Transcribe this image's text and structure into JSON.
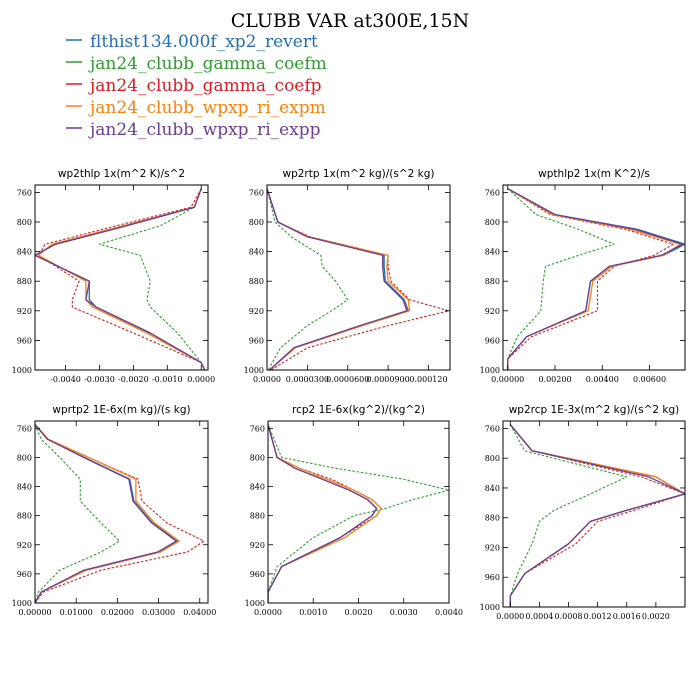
{
  "figure": {
    "title": "CLUBB VAR at300E,15N"
  },
  "colors": {
    "blue": "#1f6fb4",
    "green": "#2ca02c",
    "red": "#e31a1c",
    "orange": "#ff7f0e",
    "purple": "#6a3d9a"
  },
  "legend": [
    {
      "label": "flthist134.000f_xp2_revert",
      "color": "#1f6fb4"
    },
    {
      "label": "jan24_clubb_gamma_coefm",
      "color": "#2ca02c"
    },
    {
      "label": "jan24_clubb_gamma_coefp",
      "color": "#e31a1c"
    },
    {
      "label": "jan24_clubb_wpxp_ri_expm",
      "color": "#ff7f0e"
    },
    {
      "label": "jan24_clubb_wpxp_ri_expp",
      "color": "#6a3d9a"
    }
  ],
  "chart_data": [
    {
      "type": "line",
      "title": "wp2thlp  1x(m^2 K)/s^2",
      "ylim": [
        1000,
        750
      ],
      "yticks": [
        760,
        800,
        840,
        880,
        920,
        960,
        1000
      ],
      "xlim": [
        -0.0049,
        0.0002
      ],
      "xticks": [
        -0.004,
        -0.003,
        -0.002,
        -0.001,
        0.0
      ],
      "xtick_labels": [
        "-0.0040",
        "-0.0030",
        "-0.0020",
        "-0.0010",
        "0.0000"
      ],
      "y": [
        755,
        780,
        805,
        830,
        845,
        880,
        905,
        915,
        950,
        990,
        1000
      ],
      "series": [
        {
          "name": "flthist134.000f_xp2_revert",
          "color": "#1f6fb4",
          "dashed": false,
          "x": [
            0.0,
            -0.0002,
            -0.0022,
            -0.0043,
            -0.0049,
            -0.0033,
            -0.0033,
            -0.0031,
            -0.0015,
            0.0,
            0.0001
          ]
        },
        {
          "name": "jan24_clubb_gamma_coefm",
          "color": "#2ca02c",
          "dashed": true,
          "x": [
            0.0,
            -0.0002,
            -0.0012,
            -0.003,
            -0.0018,
            -0.0015,
            -0.0016,
            -0.0015,
            -0.0007,
            0.0,
            0.0001
          ]
        },
        {
          "name": "jan24_clubb_gamma_coefp",
          "color": "#e31a1c",
          "dashed": true,
          "x": [
            0.0,
            -0.0003,
            -0.0025,
            -0.0046,
            -0.0048,
            -0.0036,
            -0.0038,
            -0.0038,
            -0.002,
            0.0,
            0.0001
          ]
        },
        {
          "name": "jan24_clubb_wpxp_ri_expm",
          "color": "#ff7f0e",
          "dashed": false,
          "x": [
            0.0,
            -0.0002,
            -0.0023,
            -0.0044,
            -0.0048,
            -0.0034,
            -0.0034,
            -0.0032,
            -0.0016,
            0.0,
            0.0001
          ]
        },
        {
          "name": "jan24_clubb_wpxp_ri_expp",
          "color": "#6a3d9a",
          "dashed": false,
          "x": [
            0.0,
            -0.0002,
            -0.0022,
            -0.0043,
            -0.0049,
            -0.0033,
            -0.0034,
            -0.0031,
            -0.0015,
            0.0,
            0.0001
          ]
        }
      ]
    },
    {
      "type": "line",
      "title": "wp2rtp  1x(m^2 kg)/(s^2 kg)",
      "ylim": [
        1000,
        750
      ],
      "yticks": [
        760,
        800,
        840,
        880,
        920,
        960,
        1000
      ],
      "xlim": [
        0.0,
        0.000136
      ],
      "xticks": [
        0.0,
        3e-05,
        6e-05,
        9e-05,
        0.00012
      ],
      "xtick_labels": [
        "0.0000",
        "0.0000300",
        "0.0000600",
        "0.0000900",
        "0.000120"
      ],
      "y": [
        755,
        800,
        820,
        845,
        860,
        880,
        905,
        920,
        940,
        970,
        1000
      ],
      "series": [
        {
          "name": "flthist134.000f_xp2_revert",
          "color": "#1f6fb4",
          "dashed": false,
          "x": [
            0.0,
            8e-06,
            3e-05,
            8.7e-05,
            8.7e-05,
            8.8e-05,
            0.000102,
            0.000105,
            7e-05,
            2e-05,
            2e-06
          ]
        },
        {
          "name": "jan24_clubb_gamma_coefm",
          "color": "#2ca02c",
          "dashed": true,
          "x": [
            0.0,
            6e-06,
            1.8e-05,
            4e-05,
            4.1e-05,
            5.1e-05,
            6e-05,
            4.8e-05,
            3e-05,
            1e-05,
            1e-06
          ]
        },
        {
          "name": "jan24_clubb_gamma_coefp",
          "color": "#e31a1c",
          "dashed": true,
          "x": [
            0.0,
            8e-06,
            3.2e-05,
            9e-05,
            9e-05,
            9.2e-05,
            0.000106,
            0.000135,
            9e-05,
            3e-05,
            3e-06
          ]
        },
        {
          "name": "jan24_clubb_wpxp_ri_expm",
          "color": "#ff7f0e",
          "dashed": false,
          "x": [
            0.0,
            8e-06,
            3.1e-05,
            9e-05,
            8.9e-05,
            9e-05,
            0.000105,
            0.000106,
            7.1e-05,
            2.1e-05,
            2e-06
          ]
        },
        {
          "name": "jan24_clubb_wpxp_ri_expp",
          "color": "#6a3d9a",
          "dashed": false,
          "x": [
            0.0,
            8e-06,
            3e-05,
            8.6e-05,
            8.6e-05,
            8.7e-05,
            0.000101,
            0.000104,
            6.9e-05,
            2e-05,
            2e-06
          ]
        }
      ]
    },
    {
      "type": "line",
      "title": "wpthlp2  1x(m K^2)/s",
      "ylim": [
        1000,
        750
      ],
      "yticks": [
        760,
        800,
        840,
        880,
        920,
        960,
        1000
      ],
      "xlim": [
        -0.0002,
        0.0075
      ],
      "xticks": [
        0.0,
        0.002,
        0.004,
        0.006
      ],
      "xtick_labels": [
        "0.00000",
        "0.00200",
        "0.00400",
        "0.00600"
      ],
      "y": [
        755,
        790,
        810,
        830,
        845,
        860,
        880,
        920,
        955,
        985,
        1000
      ],
      "series": [
        {
          "name": "flthist134.000f_xp2_revert",
          "color": "#1f6fb4",
          "dashed": false,
          "x": [
            0.0,
            0.002,
            0.0055,
            0.0075,
            0.0066,
            0.0043,
            0.0035,
            0.0033,
            0.0008,
            0.0,
            0.0
          ]
        },
        {
          "name": "jan24_clubb_gamma_coefm",
          "color": "#2ca02c",
          "dashed": true,
          "x": [
            0.0,
            0.0012,
            0.003,
            0.0045,
            0.003,
            0.0016,
            0.0015,
            0.0014,
            0.0004,
            0.0,
            0.0
          ]
        },
        {
          "name": "jan24_clubb_gamma_coefp",
          "color": "#e31a1c",
          "dashed": true,
          "x": [
            0.0,
            0.0018,
            0.005,
            0.007,
            0.0062,
            0.0045,
            0.0038,
            0.0038,
            0.001,
            0.0,
            0.0
          ]
        },
        {
          "name": "jan24_clubb_wpxp_ri_expm",
          "color": "#ff7f0e",
          "dashed": false,
          "x": [
            0.0,
            0.0019,
            0.0052,
            0.0073,
            0.0066,
            0.0044,
            0.0036,
            0.0034,
            0.0008,
            0.0,
            0.0
          ]
        },
        {
          "name": "jan24_clubb_wpxp_ri_expp",
          "color": "#6a3d9a",
          "dashed": false,
          "x": [
            0.0,
            0.002,
            0.0054,
            0.0074,
            0.0065,
            0.0043,
            0.0035,
            0.0033,
            0.0008,
            0.0,
            0.0
          ]
        }
      ]
    },
    {
      "type": "line",
      "title": "wprtp2  1E-6x(m kg)/(s kg)",
      "ylim": [
        1000,
        750
      ],
      "yticks": [
        760,
        800,
        840,
        880,
        920,
        960,
        1000
      ],
      "xlim": [
        0.0,
        0.042
      ],
      "xticks": [
        0.0,
        0.01,
        0.02,
        0.03,
        0.04
      ],
      "xtick_labels": [
        "0.00000",
        "0.01000",
        "0.02000",
        "0.03000",
        "0.04000"
      ],
      "y": [
        755,
        775,
        800,
        830,
        860,
        890,
        915,
        930,
        955,
        985,
        1000
      ],
      "series": [
        {
          "name": "flthist134.000f_xp2_revert",
          "color": "#1f6fb4",
          "dashed": false,
          "x": [
            0.0,
            0.003,
            0.012,
            0.023,
            0.024,
            0.0285,
            0.0345,
            0.03,
            0.012,
            0.0015,
            0.0
          ]
        },
        {
          "name": "jan24_clubb_gamma_coefm",
          "color": "#2ca02c",
          "dashed": true,
          "x": [
            0.0,
            0.0015,
            0.006,
            0.011,
            0.011,
            0.016,
            0.0205,
            0.016,
            0.006,
            0.0008,
            0.0
          ]
        },
        {
          "name": "jan24_clubb_gamma_coefp",
          "color": "#e31a1c",
          "dashed": true,
          "x": [
            0.0,
            0.003,
            0.013,
            0.025,
            0.026,
            0.032,
            0.041,
            0.037,
            0.016,
            0.002,
            0.0
          ]
        },
        {
          "name": "jan24_clubb_wpxp_ri_expm",
          "color": "#ff7f0e",
          "dashed": false,
          "x": [
            0.0,
            0.0032,
            0.013,
            0.0245,
            0.0245,
            0.029,
            0.035,
            0.0305,
            0.0125,
            0.0015,
            0.0
          ]
        },
        {
          "name": "jan24_clubb_wpxp_ri_expp",
          "color": "#6a3d9a",
          "dashed": false,
          "x": [
            0.0,
            0.003,
            0.0118,
            0.0228,
            0.0238,
            0.0283,
            0.0343,
            0.0298,
            0.0118,
            0.0015,
            0.0
          ]
        }
      ]
    },
    {
      "type": "line",
      "title": "rcp2  1E-6x(kg^2)/(kg^2)",
      "ylim": [
        1000,
        750
      ],
      "yticks": [
        760,
        800,
        840,
        880,
        920,
        960,
        1000
      ],
      "xlim": [
        0.0,
        0.004
      ],
      "xticks": [
        0.0,
        0.001,
        0.002,
        0.003,
        0.004
      ],
      "xtick_labels": [
        "0.0000",
        "0.0010",
        "0.0020",
        "0.0030",
        "0.0040"
      ],
      "y": [
        755,
        800,
        815,
        830,
        845,
        858,
        870,
        880,
        910,
        950,
        985,
        1000
      ],
      "series": [
        {
          "name": "flthist134.000f_xp2_revert",
          "color": "#1f6fb4",
          "dashed": false,
          "x": [
            0.0,
            0.0002,
            0.0006,
            0.0012,
            0.0018,
            0.0022,
            0.0024,
            0.0023,
            0.0016,
            0.0003,
            0.0,
            0.0
          ]
        },
        {
          "name": "jan24_clubb_gamma_coefm",
          "color": "#2ca02c",
          "dashed": true,
          "x": [
            0.0,
            0.0003,
            0.0015,
            0.003,
            0.004,
            0.0032,
            0.0026,
            0.0019,
            0.001,
            0.0002,
            0.0,
            0.0
          ]
        },
        {
          "name": "jan24_clubb_gamma_coefp",
          "color": "#e31a1c",
          "dashed": true,
          "x": [
            0.0,
            0.0002,
            0.0007,
            0.0014,
            0.0019,
            0.0023,
            0.0025,
            0.0024,
            0.0016,
            0.0003,
            0.0,
            0.0
          ]
        },
        {
          "name": "jan24_clubb_wpxp_ri_expm",
          "color": "#ff7f0e",
          "dashed": false,
          "x": [
            0.0,
            0.0002,
            0.0007,
            0.0013,
            0.0019,
            0.0023,
            0.0025,
            0.0024,
            0.0017,
            0.0003,
            0.0,
            0.0
          ]
        },
        {
          "name": "jan24_clubb_wpxp_ri_expp",
          "color": "#6a3d9a",
          "dashed": false,
          "x": [
            0.0,
            0.0002,
            0.0006,
            0.0012,
            0.0018,
            0.0022,
            0.0024,
            0.0023,
            0.0016,
            0.0003,
            0.0,
            0.0
          ]
        }
      ]
    },
    {
      "type": "line",
      "title": "wp2rcp  1E-3x(m^2 kg)/(s^2 kg)",
      "ylim": [
        1000,
        750
      ],
      "yticks": [
        760,
        800,
        840,
        880,
        920,
        960,
        1000
      ],
      "xlim": [
        -0.0001,
        0.0024
      ],
      "xticks": [
        0.0,
        0.0004,
        0.0008,
        0.0012,
        0.0016,
        0.002
      ],
      "xtick_labels": [
        "0.0000",
        "0.0004",
        "0.0008",
        "0.0012",
        "0.0016",
        "0.0020"
      ],
      "y": [
        755,
        790,
        825,
        848,
        870,
        885,
        915,
        955,
        985,
        1000
      ],
      "series": [
        {
          "name": "flthist134.000f_xp2_revert",
          "color": "#1f6fb4",
          "dashed": false,
          "x": [
            0.0,
            0.0003,
            0.002,
            0.0024,
            0.0016,
            0.0011,
            0.0008,
            0.0002,
            0.0,
            0.0
          ]
        },
        {
          "name": "jan24_clubb_gamma_coefm",
          "color": "#2ca02c",
          "dashed": true,
          "x": [
            0.0,
            0.0002,
            0.0016,
            0.0011,
            0.0006,
            0.0004,
            0.0003,
            0.0001,
            0.0,
            0.0
          ]
        },
        {
          "name": "jan24_clubb_gamma_coefp",
          "color": "#e31a1c",
          "dashed": true,
          "x": [
            0.0,
            0.0003,
            0.0018,
            0.0024,
            0.0017,
            0.0012,
            0.0009,
            0.0002,
            0.0,
            0.0
          ]
        },
        {
          "name": "jan24_clubb_wpxp_ri_expm",
          "color": "#ff7f0e",
          "dashed": false,
          "x": [
            0.0,
            0.0003,
            0.002,
            0.0024,
            0.0016,
            0.0011,
            0.0008,
            0.0002,
            0.0,
            0.0
          ]
        },
        {
          "name": "jan24_clubb_wpxp_ri_expp",
          "color": "#6a3d9a",
          "dashed": false,
          "x": [
            0.0,
            0.0003,
            0.0019,
            0.0024,
            0.0016,
            0.0011,
            0.0008,
            0.0002,
            0.0,
            0.0
          ]
        }
      ]
    }
  ]
}
